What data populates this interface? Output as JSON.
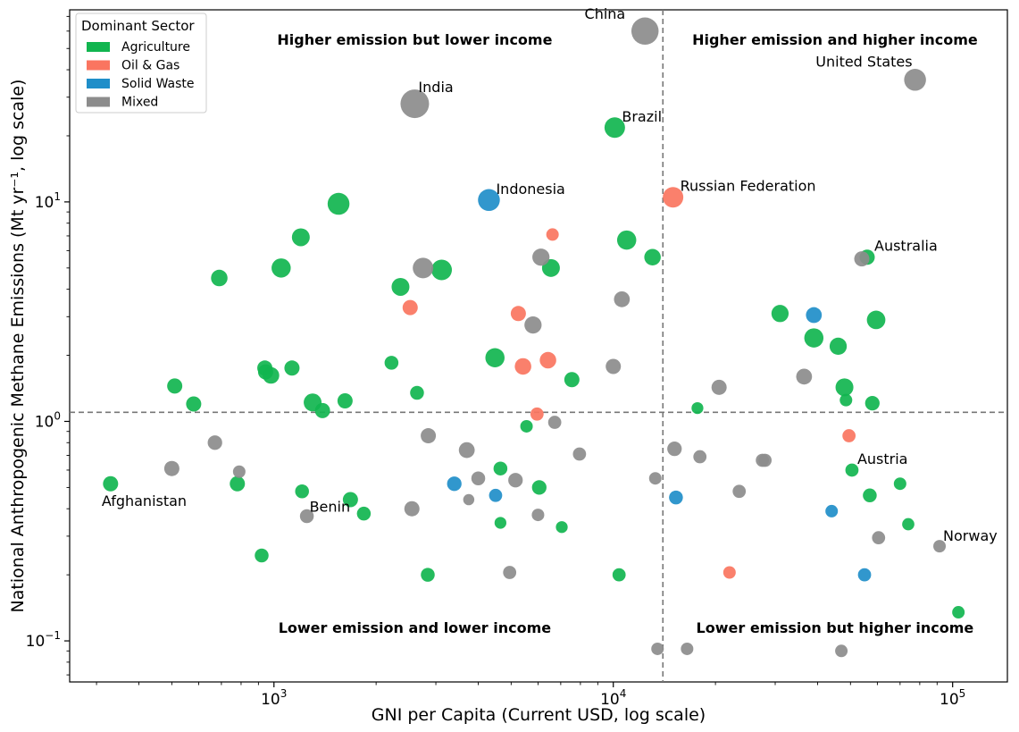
{
  "chart_data": {
    "type": "scatter",
    "xlabel": "GNI per Capita (Current USD, log scale)",
    "ylabel": "National Anthropogenic Methane Emissions (Mt yr⁻¹, log scale)",
    "xscale": "log",
    "yscale": "log",
    "xlim": [
      250,
      145000
    ],
    "ylim": [
      0.065,
      75
    ],
    "x_ticks": [
      {
        "value": 1000,
        "base": "10",
        "exp": "3"
      },
      {
        "value": 10000,
        "base": "10",
        "exp": "4"
      },
      {
        "value": 100000,
        "base": "10",
        "exp": "5"
      }
    ],
    "y_ticks": [
      {
        "value": 0.1,
        "base": "10",
        "exp": "−1"
      },
      {
        "value": 1,
        "base": "10",
        "exp": "0"
      },
      {
        "value": 10,
        "base": "10",
        "exp": "1"
      }
    ],
    "reference_lines": {
      "x": 14000,
      "y": 1.1
    },
    "quadrant_labels": [
      {
        "text": "Higher emission but lower income",
        "x": 2600,
        "y": 55,
        "anchor": "middle"
      },
      {
        "text": "Higher emission and higher income",
        "x": 45000,
        "y": 55,
        "anchor": "middle"
      },
      {
        "text": "Lower emission and lower income",
        "x": 2600,
        "y": 0.115,
        "anchor": "middle"
      },
      {
        "text": "Lower emission but higher income",
        "x": 45000,
        "y": 0.115,
        "anchor": "middle"
      }
    ],
    "legend": {
      "title": "Dominant Sector",
      "position": "top-left",
      "items": [
        {
          "label": "Agriculture",
          "color": "#11b54f"
        },
        {
          "label": "Oil & Gas",
          "color": "#fa7560"
        },
        {
          "label": "Solid Waste",
          "color": "#1f8ec9"
        },
        {
          "label": "Mixed",
          "color": "#8c8c8c"
        }
      ]
    },
    "series": [
      {
        "name": "Agriculture",
        "color": "#11b54f",
        "points": [
          {
            "x": 330,
            "y": 0.52,
            "s": 0.6,
            "label": "Afghanistan"
          },
          {
            "x": 510,
            "y": 1.45,
            "s": 0.6
          },
          {
            "x": 580,
            "y": 1.2,
            "s": 0.6
          },
          {
            "x": 690,
            "y": 4.5,
            "s": 0.7
          },
          {
            "x": 780,
            "y": 0.52,
            "s": 0.6
          },
          {
            "x": 920,
            "y": 0.245,
            "s": 0.5
          },
          {
            "x": 940,
            "y": 1.75,
            "s": 0.6
          },
          {
            "x": 945,
            "y": 1.68,
            "s": 0.6
          },
          {
            "x": 980,
            "y": 1.62,
            "s": 0.7
          },
          {
            "x": 1050,
            "y": 5.0,
            "s": 0.9
          },
          {
            "x": 1130,
            "y": 1.75,
            "s": 0.6
          },
          {
            "x": 1200,
            "y": 6.9,
            "s": 0.8
          },
          {
            "x": 1210,
            "y": 0.48,
            "s": 0.5
          },
          {
            "x": 1300,
            "y": 1.22,
            "s": 0.8
          },
          {
            "x": 1390,
            "y": 1.12,
            "s": 0.6
          },
          {
            "x": 1550,
            "y": 9.8,
            "s": 1.1
          },
          {
            "x": 1620,
            "y": 1.24,
            "s": 0.6
          },
          {
            "x": 1680,
            "y": 0.44,
            "s": 0.6
          },
          {
            "x": 1840,
            "y": 0.38,
            "s": 0.5
          },
          {
            "x": 2220,
            "y": 1.85,
            "s": 0.5
          },
          {
            "x": 2360,
            "y": 4.1,
            "s": 0.8
          },
          {
            "x": 2640,
            "y": 1.35,
            "s": 0.5
          },
          {
            "x": 2840,
            "y": 0.2,
            "s": 0.5
          },
          {
            "x": 3120,
            "y": 4.9,
            "s": 1.0
          },
          {
            "x": 4480,
            "y": 1.95,
            "s": 0.9
          },
          {
            "x": 4650,
            "y": 0.61,
            "s": 0.5
          },
          {
            "x": 4650,
            "y": 0.345,
            "s": 0.35
          },
          {
            "x": 5550,
            "y": 0.95,
            "s": 0.4
          },
          {
            "x": 6050,
            "y": 0.5,
            "s": 0.55
          },
          {
            "x": 6550,
            "y": 5.0,
            "s": 0.8
          },
          {
            "x": 7050,
            "y": 0.33,
            "s": 0.35
          },
          {
            "x": 7550,
            "y": 1.55,
            "s": 0.6
          },
          {
            "x": 10100,
            "y": 21.8,
            "s": 1.0,
            "label": "Brazil"
          },
          {
            "x": 10400,
            "y": 0.2,
            "s": 0.45
          },
          {
            "x": 10950,
            "y": 6.7,
            "s": 0.9
          },
          {
            "x": 13050,
            "y": 5.6,
            "s": 0.7
          },
          {
            "x": 17700,
            "y": 1.15,
            "s": 0.35
          },
          {
            "x": 31000,
            "y": 3.1,
            "s": 0.75
          },
          {
            "x": 39000,
            "y": 2.4,
            "s": 0.9
          },
          {
            "x": 46000,
            "y": 2.2,
            "s": 0.75
          },
          {
            "x": 48000,
            "y": 1.43,
            "s": 0.8
          },
          {
            "x": 48500,
            "y": 1.25,
            "s": 0.4
          },
          {
            "x": 50500,
            "y": 0.6,
            "s": 0.45
          },
          {
            "x": 56000,
            "y": 5.6,
            "s": 0.6,
            "label": "Australia"
          },
          {
            "x": 57000,
            "y": 0.46,
            "s": 0.5
          },
          {
            "x": 58000,
            "y": 1.21,
            "s": 0.55
          },
          {
            "x": 59500,
            "y": 2.9,
            "s": 0.85
          },
          {
            "x": 70000,
            "y": 0.52,
            "s": 0.4
          },
          {
            "x": 74000,
            "y": 0.34,
            "s": 0.38
          },
          {
            "x": 104000,
            "y": 0.135,
            "s": 0.4
          }
        ]
      },
      {
        "name": "Oil & Gas",
        "color": "#fa7560",
        "points": [
          {
            "x": 2520,
            "y": 3.3,
            "s": 0.6
          },
          {
            "x": 5250,
            "y": 3.1,
            "s": 0.6
          },
          {
            "x": 5420,
            "y": 1.78,
            "s": 0.7
          },
          {
            "x": 5960,
            "y": 1.08,
            "s": 0.45
          },
          {
            "x": 6420,
            "y": 1.9,
            "s": 0.7
          },
          {
            "x": 6620,
            "y": 7.1,
            "s": 0.4
          },
          {
            "x": 15000,
            "y": 10.5,
            "s": 1.0,
            "label": "Russian Federation"
          },
          {
            "x": 22000,
            "y": 0.205,
            "s": 0.4
          },
          {
            "x": 49500,
            "y": 0.86,
            "s": 0.45
          }
        ]
      },
      {
        "name": "Solid Waste",
        "color": "#1f8ec9",
        "points": [
          {
            "x": 3400,
            "y": 0.52,
            "s": 0.55
          },
          {
            "x": 4300,
            "y": 10.2,
            "s": 1.1,
            "label": "Indonesia"
          },
          {
            "x": 4500,
            "y": 0.46,
            "s": 0.45
          },
          {
            "x": 15300,
            "y": 0.45,
            "s": 0.5
          },
          {
            "x": 39000,
            "y": 3.05,
            "s": 0.65
          },
          {
            "x": 44000,
            "y": 0.39,
            "s": 0.4
          },
          {
            "x": 55000,
            "y": 0.2,
            "s": 0.45
          }
        ]
      },
      {
        "name": "Mixed",
        "color": "#8c8c8c",
        "points": [
          {
            "x": 500,
            "y": 0.61,
            "s": 0.6
          },
          {
            "x": 670,
            "y": 0.8,
            "s": 0.55
          },
          {
            "x": 790,
            "y": 0.59,
            "s": 0.4
          },
          {
            "x": 1250,
            "y": 0.37,
            "s": 0.5,
            "label": "Benin"
          },
          {
            "x": 2550,
            "y": 0.4,
            "s": 0.6
          },
          {
            "x": 2600,
            "y": 28.0,
            "s": 1.6,
            "label": "India"
          },
          {
            "x": 2750,
            "y": 5.0,
            "s": 1.0
          },
          {
            "x": 2850,
            "y": 0.86,
            "s": 0.6
          },
          {
            "x": 3700,
            "y": 0.74,
            "s": 0.65
          },
          {
            "x": 3750,
            "y": 0.44,
            "s": 0.3
          },
          {
            "x": 4000,
            "y": 0.55,
            "s": 0.5
          },
          {
            "x": 4950,
            "y": 0.205,
            "s": 0.45
          },
          {
            "x": 5150,
            "y": 0.54,
            "s": 0.55
          },
          {
            "x": 5800,
            "y": 2.75,
            "s": 0.75
          },
          {
            "x": 6000,
            "y": 0.375,
            "s": 0.4
          },
          {
            "x": 6120,
            "y": 5.6,
            "s": 0.75
          },
          {
            "x": 6720,
            "y": 0.99,
            "s": 0.45
          },
          {
            "x": 7950,
            "y": 0.71,
            "s": 0.45
          },
          {
            "x": 10000,
            "y": 1.78,
            "s": 0.6
          },
          {
            "x": 10600,
            "y": 3.6,
            "s": 0.65
          },
          {
            "x": 12400,
            "y": 60.0,
            "s": 1.5,
            "label": "China"
          },
          {
            "x": 13300,
            "y": 0.55,
            "s": 0.4
          },
          {
            "x": 13500,
            "y": 0.092,
            "s": 0.4
          },
          {
            "x": 15150,
            "y": 0.75,
            "s": 0.55
          },
          {
            "x": 16500,
            "y": 0.092,
            "s": 0.4
          },
          {
            "x": 18000,
            "y": 0.69,
            "s": 0.45
          },
          {
            "x": 20500,
            "y": 1.43,
            "s": 0.6
          },
          {
            "x": 23500,
            "y": 0.48,
            "s": 0.45
          },
          {
            "x": 27500,
            "y": 0.665,
            "s": 0.45
          },
          {
            "x": 28000,
            "y": 0.665,
            "s": 0.45
          },
          {
            "x": 36500,
            "y": 1.6,
            "s": 0.65
          },
          {
            "x": 47000,
            "y": 0.09,
            "s": 0.4
          },
          {
            "x": 54000,
            "y": 5.5,
            "s": 0.6
          },
          {
            "x": 60500,
            "y": 0.295,
            "s": 0.45
          },
          {
            "x": 77500,
            "y": 36.0,
            "s": 1.1,
            "label": "United States"
          },
          {
            "x": 91500,
            "y": 0.27,
            "s": 0.4,
            "label": "Norway"
          }
        ]
      }
    ],
    "extra_labels": [
      {
        "text": "Austria",
        "x": 50500,
        "y": 0.6
      }
    ]
  }
}
